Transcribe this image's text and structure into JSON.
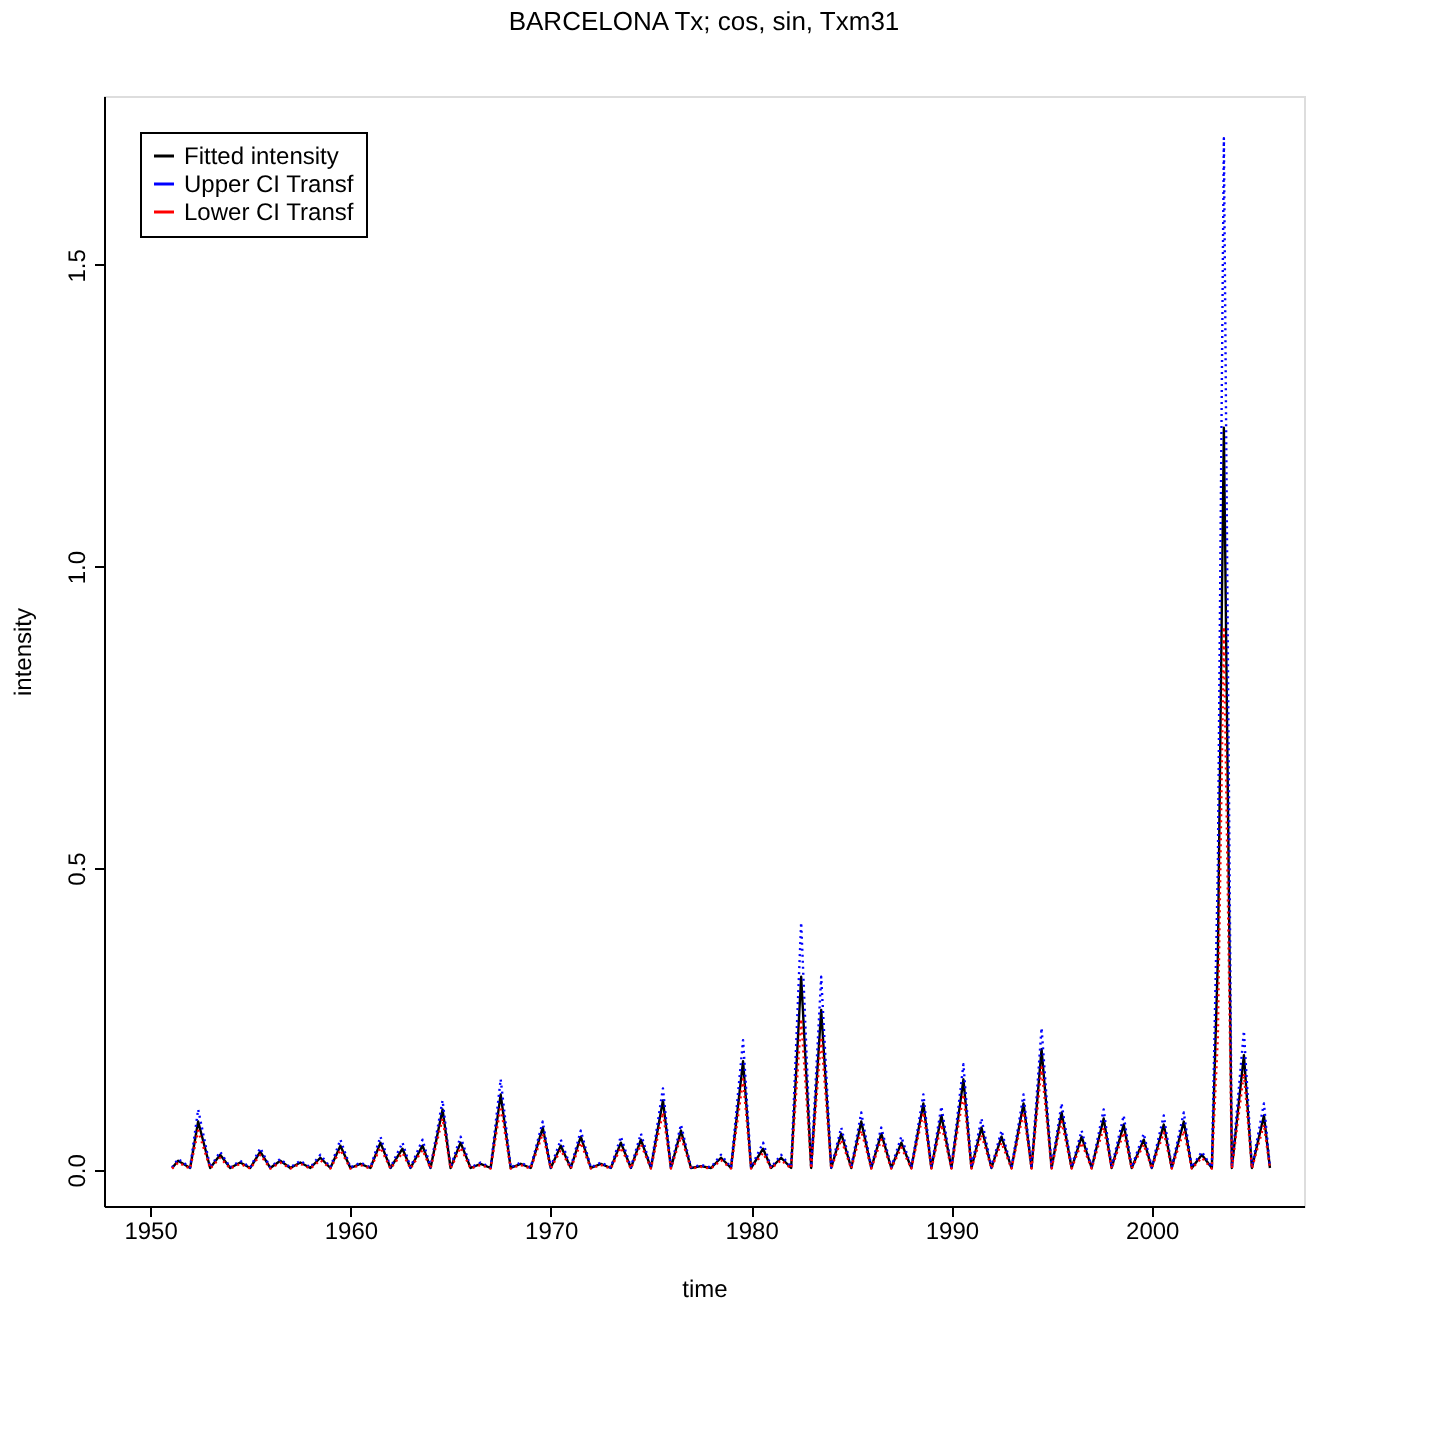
{
  "chart_data": {
    "type": "line",
    "title": "BARCELONA Tx; cos, sin, Txm31",
    "xlabel": "time",
    "ylabel": "intensity",
    "x": [
      1951.1,
      1951.4,
      1952.0,
      1952.4,
      1953.0,
      1953.5,
      1954.0,
      1954.5,
      1955.0,
      1955.5,
      1956.0,
      1956.5,
      1957.0,
      1957.5,
      1958.0,
      1958.5,
      1959.0,
      1959.5,
      1960.0,
      1960.5,
      1961.0,
      1961.5,
      1962.0,
      1962.6,
      1963.0,
      1963.6,
      1964.0,
      1964.6,
      1965.0,
      1965.5,
      1966.0,
      1966.5,
      1967.0,
      1967.5,
      1968.0,
      1968.5,
      1969.0,
      1969.6,
      1970.0,
      1970.5,
      1971.0,
      1971.5,
      1972.0,
      1972.5,
      1973.0,
      1973.5,
      1974.0,
      1974.5,
      1975.0,
      1975.6,
      1976.0,
      1976.5,
      1977.0,
      1977.5,
      1978.0,
      1978.5,
      1979.0,
      1979.6,
      1980.0,
      1980.6,
      1981.0,
      1981.5,
      1982.0,
      1982.5,
      1983.0,
      1983.5,
      1984.0,
      1984.5,
      1985.0,
      1985.5,
      1986.0,
      1986.5,
      1987.0,
      1987.5,
      1988.0,
      1988.6,
      1989.0,
      1989.5,
      1990.0,
      1990.6,
      1991.0,
      1991.5,
      1992.0,
      1992.5,
      1993.0,
      1993.6,
      1994.0,
      1994.5,
      1995.0,
      1995.5,
      1996.0,
      1996.5,
      1997.0,
      1997.6,
      1998.0,
      1998.6,
      1999.0,
      1999.6,
      2000.0,
      2000.6,
      2001.0,
      2001.6,
      2002.0,
      2002.5,
      2003.0,
      2003.3,
      2003.6,
      2004.0,
      2004.6,
      2005.0,
      2005.6,
      2005.9
    ],
    "series": [
      {
        "name": "Fitted intensity",
        "color": "#000000",
        "line_style": "solid",
        "values": [
          0.003,
          0.015,
          0.003,
          0.08,
          0.003,
          0.025,
          0.003,
          0.012,
          0.003,
          0.03,
          0.003,
          0.015,
          0.003,
          0.012,
          0.003,
          0.02,
          0.003,
          0.04,
          0.003,
          0.01,
          0.003,
          0.045,
          0.003,
          0.035,
          0.003,
          0.04,
          0.003,
          0.1,
          0.003,
          0.045,
          0.003,
          0.01,
          0.003,
          0.125,
          0.003,
          0.01,
          0.003,
          0.07,
          0.003,
          0.04,
          0.003,
          0.055,
          0.003,
          0.01,
          0.003,
          0.045,
          0.003,
          0.05,
          0.003,
          0.115,
          0.003,
          0.065,
          0.003,
          0.006,
          0.003,
          0.02,
          0.003,
          0.18,
          0.003,
          0.035,
          0.003,
          0.02,
          0.003,
          0.32,
          0.003,
          0.265,
          0.003,
          0.06,
          0.003,
          0.08,
          0.003,
          0.06,
          0.003,
          0.045,
          0.003,
          0.11,
          0.003,
          0.09,
          0.003,
          0.15,
          0.003,
          0.07,
          0.003,
          0.055,
          0.003,
          0.11,
          0.003,
          0.2,
          0.003,
          0.095,
          0.003,
          0.055,
          0.003,
          0.085,
          0.003,
          0.075,
          0.003,
          0.05,
          0.003,
          0.075,
          0.003,
          0.08,
          0.003,
          0.025,
          0.003,
          0.35,
          1.23,
          0.003,
          0.19,
          0.003,
          0.09,
          0.003
        ]
      },
      {
        "name": "Upper CI Transf",
        "color": "#0000ff",
        "line_style": "dotted",
        "values": [
          0.004,
          0.018,
          0.004,
          0.1,
          0.004,
          0.03,
          0.004,
          0.015,
          0.004,
          0.036,
          0.004,
          0.018,
          0.004,
          0.015,
          0.004,
          0.025,
          0.004,
          0.05,
          0.004,
          0.012,
          0.004,
          0.055,
          0.004,
          0.045,
          0.004,
          0.05,
          0.004,
          0.115,
          0.004,
          0.055,
          0.004,
          0.012,
          0.004,
          0.15,
          0.004,
          0.012,
          0.004,
          0.08,
          0.004,
          0.05,
          0.004,
          0.065,
          0.004,
          0.012,
          0.004,
          0.055,
          0.004,
          0.06,
          0.004,
          0.135,
          0.004,
          0.075,
          0.004,
          0.008,
          0.004,
          0.025,
          0.004,
          0.215,
          0.004,
          0.045,
          0.004,
          0.025,
          0.004,
          0.41,
          0.004,
          0.32,
          0.004,
          0.07,
          0.004,
          0.095,
          0.004,
          0.07,
          0.004,
          0.055,
          0.004,
          0.125,
          0.004,
          0.105,
          0.004,
          0.175,
          0.004,
          0.085,
          0.004,
          0.065,
          0.004,
          0.125,
          0.004,
          0.235,
          0.004,
          0.11,
          0.004,
          0.065,
          0.004,
          0.1,
          0.004,
          0.09,
          0.004,
          0.06,
          0.004,
          0.09,
          0.004,
          0.095,
          0.004,
          0.03,
          0.004,
          0.5,
          1.71,
          0.004,
          0.23,
          0.004,
          0.11,
          0.004
        ]
      },
      {
        "name": "Lower CI Transf",
        "color": "#ff0000",
        "line_style": "dotted",
        "values": [
          0.002,
          0.012,
          0.002,
          0.065,
          0.002,
          0.02,
          0.002,
          0.01,
          0.002,
          0.025,
          0.002,
          0.012,
          0.002,
          0.01,
          0.002,
          0.016,
          0.002,
          0.033,
          0.002,
          0.008,
          0.002,
          0.037,
          0.002,
          0.028,
          0.002,
          0.033,
          0.002,
          0.085,
          0.002,
          0.037,
          0.002,
          0.008,
          0.002,
          0.105,
          0.002,
          0.008,
          0.002,
          0.06,
          0.002,
          0.033,
          0.002,
          0.045,
          0.002,
          0.008,
          0.002,
          0.037,
          0.002,
          0.042,
          0.002,
          0.095,
          0.002,
          0.055,
          0.002,
          0.005,
          0.002,
          0.016,
          0.002,
          0.15,
          0.002,
          0.028,
          0.002,
          0.016,
          0.002,
          0.25,
          0.002,
          0.22,
          0.002,
          0.05,
          0.002,
          0.065,
          0.002,
          0.05,
          0.002,
          0.037,
          0.002,
          0.095,
          0.002,
          0.075,
          0.002,
          0.125,
          0.002,
          0.058,
          0.002,
          0.045,
          0.002,
          0.095,
          0.002,
          0.17,
          0.002,
          0.08,
          0.002,
          0.045,
          0.002,
          0.07,
          0.002,
          0.062,
          0.002,
          0.042,
          0.002,
          0.062,
          0.002,
          0.065,
          0.002,
          0.02,
          0.002,
          0.22,
          0.9,
          0.002,
          0.16,
          0.002,
          0.075,
          0.002
        ]
      }
    ],
    "xlim": [
      1947.7,
      2007.6
    ],
    "xticks": [
      1950,
      1960,
      1970,
      1980,
      1990,
      2000
    ],
    "ylim": [
      -0.06,
      1.78
    ],
    "yticks": [
      {
        "value": 0,
        "label": "0.0"
      },
      {
        "value": 0.5,
        "label": "0.5"
      },
      {
        "value": 1,
        "label": "1.0"
      },
      {
        "value": 1.5,
        "label": "1.5"
      }
    ],
    "legend": "top left",
    "grid": false
  }
}
